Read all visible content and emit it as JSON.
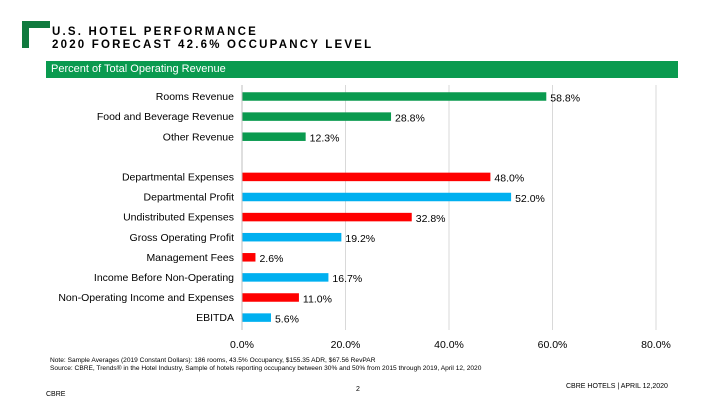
{
  "header": {
    "title_line1": "U.S. HOTEL PERFORMANCE",
    "title_line2": "2020 FORECAST 42.6% OCCUPANCY LEVEL",
    "banner": "Percent of Total Operating Revenue"
  },
  "colors": {
    "revenue": "#0a9a4f",
    "expense": "#ff0000",
    "profit": "#00b0f0",
    "accent": "#0f7a3e",
    "grid": "#d9d9d9"
  },
  "chart_data": {
    "type": "bar",
    "orientation": "horizontal",
    "title": "Percent of Total Operating Revenue",
    "xlim": [
      0,
      80
    ],
    "xticks": [
      "0.0%",
      "20.0%",
      "40.0%",
      "60.0%",
      "80.0%"
    ],
    "xtick_values": [
      0,
      20,
      40,
      60,
      80
    ],
    "grid": true,
    "bars": [
      {
        "label": "Rooms Revenue",
        "value": 58.8,
        "value_label": "58.8%",
        "kind": "revenue",
        "group": 1
      },
      {
        "label": "Food and Beverage Revenue",
        "value": 28.8,
        "value_label": "28.8%",
        "kind": "revenue",
        "group": 1
      },
      {
        "label": "Other Revenue",
        "value": 12.3,
        "value_label": "12.3%",
        "kind": "revenue",
        "group": 1
      },
      {
        "label": "Departmental Expenses",
        "value": 48.0,
        "value_label": "48.0%",
        "kind": "expense",
        "group": 2
      },
      {
        "label": "Departmental Profit",
        "value": 52.0,
        "value_label": "52.0%",
        "kind": "profit",
        "group": 2
      },
      {
        "label": "Undistributed Expenses",
        "value": 32.8,
        "value_label": "32.8%",
        "kind": "expense",
        "group": 2
      },
      {
        "label": "Gross Operating Profit",
        "value": 19.2,
        "value_label": "19.2%",
        "kind": "profit",
        "group": 2
      },
      {
        "label": "Management Fees",
        "value": 2.6,
        "value_label": "2.6%",
        "kind": "expense",
        "group": 2
      },
      {
        "label": "Income Before Non-Operating",
        "value": 16.7,
        "value_label": "16.7%",
        "kind": "profit",
        "group": 2
      },
      {
        "label": "Non-Operating Income and Expenses",
        "value": 11.0,
        "value_label": "11.0%",
        "kind": "expense",
        "group": 2
      },
      {
        "label": "EBITDA",
        "value": 5.6,
        "value_label": "5.6%",
        "kind": "profit",
        "group": 2
      }
    ]
  },
  "notes": {
    "line1": "Note: Sample Averages (2019 Constant Dollars):  186 rooms, 43.5% Occupancy, $155.35 ADR, $67.56 RevPAR",
    "line2": "Source: CBRE, Trends® in the Hotel Industry, Sample of hotels reporting occupancy between 30% and 50% from 2015 through 2019, April 12, 2020"
  },
  "footer": {
    "left": "CBRE",
    "page": "2",
    "right": "CBRE HOTELS |  APRIL 12,2020"
  }
}
